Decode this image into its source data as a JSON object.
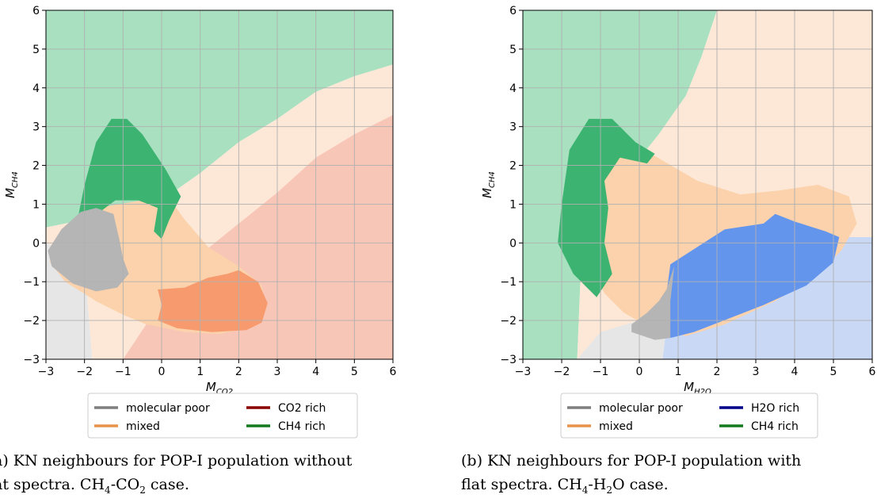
{
  "chart_data": [
    {
      "type": "scatter",
      "subtype": "decision-region map",
      "panel": "a",
      "xlabel": "M",
      "xlabel_sub": "CO2",
      "ylabel": "M",
      "ylabel_sub": "CH4",
      "xlim": [
        -3,
        6
      ],
      "ylim": [
        -3,
        6
      ],
      "xticks": [
        "−3",
        "−2",
        "−1",
        "0",
        "1",
        "2",
        "3",
        "4",
        "5",
        "6"
      ],
      "yticks": [
        "−3",
        "−2",
        "−1",
        "0",
        "1",
        "2",
        "3",
        "4",
        "5",
        "6"
      ],
      "grid": true,
      "legend": {
        "placement": "below",
        "items": [
          {
            "label": "molecular poor",
            "color": "#7f7f7f"
          },
          {
            "label": "CO2 rich",
            "color": "#8b0000"
          },
          {
            "label": "mixed",
            "color": "#e8934a"
          },
          {
            "label": "CH4 rich",
            "color": "#147a1e"
          }
        ]
      },
      "regions": [
        {
          "class": "CH4 rich",
          "opacity": "background",
          "color": "#a8e0c0",
          "points": [
            [
              -3,
              6
            ],
            [
              6,
              6
            ],
            [
              6,
              4.6
            ],
            [
              5,
              4.3
            ],
            [
              4,
              3.9
            ],
            [
              3,
              3.2
            ],
            [
              2,
              2.6
            ],
            [
              1,
              1.8
            ],
            [
              0,
              1.1
            ],
            [
              -1,
              0.8
            ],
            [
              -2,
              0.6
            ],
            [
              -3,
              0.4
            ]
          ]
        },
        {
          "class": "mixed",
          "opacity": "background",
          "color": "#fde7d6",
          "points": [
            [
              6,
              4.6
            ],
            [
              5,
              4.3
            ],
            [
              4,
              3.9
            ],
            [
              3,
              3.2
            ],
            [
              2,
              2.6
            ],
            [
              1,
              1.8
            ],
            [
              0,
              1.1
            ],
            [
              -1,
              0.8
            ],
            [
              -2,
              0.6
            ],
            [
              -3,
              0.4
            ],
            [
              -3,
              0
            ],
            [
              -2,
              -0.5
            ],
            [
              -1.8,
              -3
            ],
            [
              -1,
              -3
            ],
            [
              0,
              -1.5
            ],
            [
              1,
              -0.3
            ],
            [
              2,
              0.5
            ],
            [
              3,
              1.3
            ],
            [
              4,
              2.2
            ],
            [
              5,
              2.8
            ],
            [
              6,
              3.3
            ]
          ]
        },
        {
          "class": "CO2 rich",
          "opacity": "background",
          "color": "#f8c6b6",
          "points": [
            [
              6,
              3.3
            ],
            [
              5,
              2.8
            ],
            [
              4,
              2.2
            ],
            [
              3,
              1.3
            ],
            [
              2,
              0.5
            ],
            [
              1,
              -0.3
            ],
            [
              0,
              -1.5
            ],
            [
              -1,
              -3
            ],
            [
              6,
              -3
            ]
          ]
        },
        {
          "class": "molecular poor",
          "opacity": "background",
          "color": "#e6e6e6",
          "points": [
            [
              -3,
              0
            ],
            [
              -2,
              -0.5
            ],
            [
              -1.8,
              -3
            ],
            [
              -3,
              -3
            ]
          ]
        },
        {
          "class": "mixed",
          "opacity": "solid",
          "color": "#fbd2ab",
          "points": [
            [
              -1.4,
              0.95
            ],
            [
              -0.5,
              1.1
            ],
            [
              0.2,
              1.15
            ],
            [
              0.6,
              0.6
            ],
            [
              1.2,
              -0.1
            ],
            [
              2,
              -0.6
            ],
            [
              2.6,
              -1.1
            ],
            [
              2.7,
              -1.7
            ],
            [
              2.2,
              -2.2
            ],
            [
              1.5,
              -2.35
            ],
            [
              0.6,
              -2.3
            ],
            [
              -0.4,
              -2.1
            ],
            [
              -1,
              -1.85
            ],
            [
              -1.7,
              -1.5
            ],
            [
              -2.5,
              -1
            ],
            [
              -2.9,
              -0.5
            ],
            [
              -2.8,
              0
            ],
            [
              -2.4,
              0.4
            ],
            [
              -2,
              0.75
            ]
          ]
        },
        {
          "class": "CH4 rich",
          "opacity": "solid",
          "color": "#3cb371",
          "points": [
            [
              -2.2,
              0.5
            ],
            [
              -2,
              1.5
            ],
            [
              -1.7,
              2.6
            ],
            [
              -1.3,
              3.2
            ],
            [
              -0.9,
              3.2
            ],
            [
              -0.5,
              2.8
            ],
            [
              0.1,
              1.9
            ],
            [
              0.5,
              1.2
            ],
            [
              0.2,
              0.6
            ],
            [
              0,
              0.1
            ],
            [
              -0.2,
              0.3
            ],
            [
              -0.1,
              0.9
            ],
            [
              -0.6,
              1.1
            ],
            [
              -1.2,
              1.1
            ],
            [
              -1.6,
              0.8
            ],
            [
              -1.9,
              0.6
            ]
          ]
        },
        {
          "class": "molecular poor",
          "opacity": "solid",
          "color": "#b5b5b5",
          "points": [
            [
              -2.1,
              0.8
            ],
            [
              -1.7,
              0.9
            ],
            [
              -1.25,
              0.75
            ],
            [
              -1.1,
              0.1
            ],
            [
              -1.0,
              -0.4
            ],
            [
              -0.85,
              -0.8
            ],
            [
              -1.15,
              -1.15
            ],
            [
              -1.7,
              -1.25
            ],
            [
              -2.3,
              -1.05
            ],
            [
              -2.85,
              -0.6
            ],
            [
              -2.95,
              -0.2
            ],
            [
              -2.6,
              0.35
            ]
          ]
        },
        {
          "class": "CO2 rich",
          "opacity": "solid",
          "color": "#f79a6e",
          "points": [
            [
              -0.1,
              -1.2
            ],
            [
              0.6,
              -1.15
            ],
            [
              1.2,
              -0.9
            ],
            [
              1.7,
              -0.8
            ],
            [
              2.0,
              -0.7
            ],
            [
              2.5,
              -1.0
            ],
            [
              2.75,
              -1.55
            ],
            [
              2.6,
              -2.05
            ],
            [
              2.2,
              -2.25
            ],
            [
              1.3,
              -2.3
            ],
            [
              0.4,
              -2.2
            ],
            [
              -0.1,
              -2.0
            ],
            [
              0.0,
              -1.6
            ]
          ]
        }
      ]
    },
    {
      "type": "scatter",
      "subtype": "decision-region map",
      "panel": "b",
      "xlabel": "M",
      "xlabel_sub": "H2O",
      "ylabel": "M",
      "ylabel_sub": "CH4",
      "xlim": [
        -3,
        6
      ],
      "ylim": [
        -3,
        6
      ],
      "xticks": [
        "−3",
        "−2",
        "−1",
        "0",
        "1",
        "2",
        "3",
        "4",
        "5",
        "6"
      ],
      "yticks": [
        "−3",
        "−2",
        "−1",
        "0",
        "1",
        "2",
        "3",
        "4",
        "5",
        "6"
      ],
      "grid": true,
      "legend": {
        "placement": "below",
        "items": [
          {
            "label": "molecular poor",
            "color": "#7f7f7f"
          },
          {
            "label": "H2O rich",
            "color": "#00008b"
          },
          {
            "label": "mixed",
            "color": "#e8934a"
          },
          {
            "label": "CH4 rich",
            "color": "#147a1e"
          }
        ]
      },
      "regions": [
        {
          "class": "CH4 rich",
          "opacity": "background",
          "color": "#a8e0c0",
          "points": [
            [
              -3,
              6
            ],
            [
              2,
              6
            ],
            [
              1.6,
              4.8
            ],
            [
              1.2,
              3.8
            ],
            [
              0.5,
              2.8
            ],
            [
              -0.3,
              1.8
            ],
            [
              -1.2,
              0.5
            ],
            [
              -1.5,
              -0.5
            ],
            [
              -1.6,
              -3
            ],
            [
              -3,
              -3
            ]
          ]
        },
        {
          "class": "mixed",
          "opacity": "background",
          "color": "#fde7d6",
          "points": [
            [
              2,
              6
            ],
            [
              6,
              6
            ],
            [
              6,
              0.15
            ],
            [
              5.3,
              0.15
            ],
            [
              3,
              -0.5
            ],
            [
              1.5,
              -1.2
            ],
            [
              0.7,
              -2
            ],
            [
              0.5,
              -3
            ],
            [
              -1.6,
              -3
            ],
            [
              -1.5,
              -0.5
            ],
            [
              -1.2,
              0.5
            ],
            [
              -0.3,
              1.8
            ],
            [
              0.5,
              2.8
            ],
            [
              1.2,
              3.8
            ],
            [
              1.6,
              4.8
            ]
          ]
        },
        {
          "class": "H2O rich",
          "opacity": "background",
          "color": "#c8d8f5",
          "points": [
            [
              6,
              0.15
            ],
            [
              5.3,
              0.15
            ],
            [
              3,
              -0.5
            ],
            [
              1.5,
              -1.2
            ],
            [
              0.7,
              -2
            ],
            [
              0.6,
              -3
            ],
            [
              6,
              -3
            ]
          ]
        },
        {
          "class": "molecular poor",
          "opacity": "background",
          "color": "#e6e6e6",
          "points": [
            [
              0.6,
              -3
            ],
            [
              0.7,
              -2.2
            ],
            [
              0,
              -2
            ],
            [
              -1,
              -2.3
            ],
            [
              -1.6,
              -3
            ]
          ]
        },
        {
          "class": "mixed",
          "opacity": "solid",
          "color": "#fbd2ab",
          "points": [
            [
              -1.6,
              1.5
            ],
            [
              -1.2,
              2.5
            ],
            [
              -0.6,
              2.4
            ],
            [
              0.3,
              2.3
            ],
            [
              1.5,
              1.6
            ],
            [
              2.6,
              1.25
            ],
            [
              3.6,
              1.35
            ],
            [
              4.6,
              1.5
            ],
            [
              5.4,
              1.2
            ],
            [
              5.6,
              0.5
            ],
            [
              5.2,
              -0.2
            ],
            [
              4.6,
              -0.8
            ],
            [
              3.5,
              -1.5
            ],
            [
              2.2,
              -2.1
            ],
            [
              1.2,
              -2.4
            ],
            [
              0.3,
              -2.2
            ],
            [
              -0.4,
              -1.8
            ],
            [
              -0.9,
              -1.3
            ],
            [
              -1.3,
              -0.4
            ],
            [
              -1.5,
              0.5
            ]
          ]
        },
        {
          "class": "CH4 rich",
          "opacity": "solid",
          "color": "#3cb371",
          "points": [
            [
              -2.0,
              1.0
            ],
            [
              -1.8,
              2.4
            ],
            [
              -1.3,
              3.2
            ],
            [
              -0.7,
              3.2
            ],
            [
              -0.1,
              2.6
            ],
            [
              0.4,
              2.3
            ],
            [
              0.2,
              2.05
            ],
            [
              -0.5,
              2.2
            ],
            [
              -0.9,
              1.6
            ],
            [
              -0.8,
              0.9
            ],
            [
              -0.9,
              0.0
            ],
            [
              -0.7,
              -0.8
            ],
            [
              -1.1,
              -1.4
            ],
            [
              -1.7,
              -0.8
            ],
            [
              -2.1,
              0.0
            ]
          ]
        },
        {
          "class": "H2O rich",
          "opacity": "solid",
          "color": "#6495ed",
          "points": [
            [
              0.8,
              -0.55
            ],
            [
              1.5,
              -0.1
            ],
            [
              2.2,
              0.35
            ],
            [
              3.2,
              0.5
            ],
            [
              3.5,
              0.75
            ],
            [
              4.0,
              0.55
            ],
            [
              4.8,
              0.3
            ],
            [
              5.15,
              0.15
            ],
            [
              5.0,
              -0.5
            ],
            [
              4.3,
              -1.1
            ],
            [
              3.2,
              -1.6
            ],
            [
              2.3,
              -1.95
            ],
            [
              1.4,
              -2.3
            ],
            [
              0.8,
              -2.45
            ],
            [
              0.7,
              -1.3
            ]
          ]
        },
        {
          "class": "molecular poor",
          "opacity": "solid",
          "color": "#b5b5b5",
          "points": [
            [
              0.9,
              -0.6
            ],
            [
              0.7,
              -1.2
            ],
            [
              0.5,
              -1.5
            ],
            [
              0.2,
              -1.8
            ],
            [
              -0.2,
              -2.1
            ],
            [
              -0.2,
              -2.3
            ],
            [
              0.4,
              -2.5
            ],
            [
              0.8,
              -2.45
            ],
            [
              0.8,
              -1.5
            ]
          ]
        }
      ]
    }
  ],
  "captions": {
    "a": {
      "line1": "a) KN neighbours for POP-I population without",
      "line2_before": "at spectra. CH",
      "line2_sub1": "4",
      "line2_mid": "-CO",
      "line2_sub2": "2",
      "line2_after": " case."
    },
    "b": {
      "line1": "(b) KN neighbours for POP-I population with",
      "line2_before": "flat spectra. CH",
      "line2_sub1": "4",
      "line2_mid": "-H",
      "line2_sub2": "2",
      "line2_after": "O case."
    }
  }
}
